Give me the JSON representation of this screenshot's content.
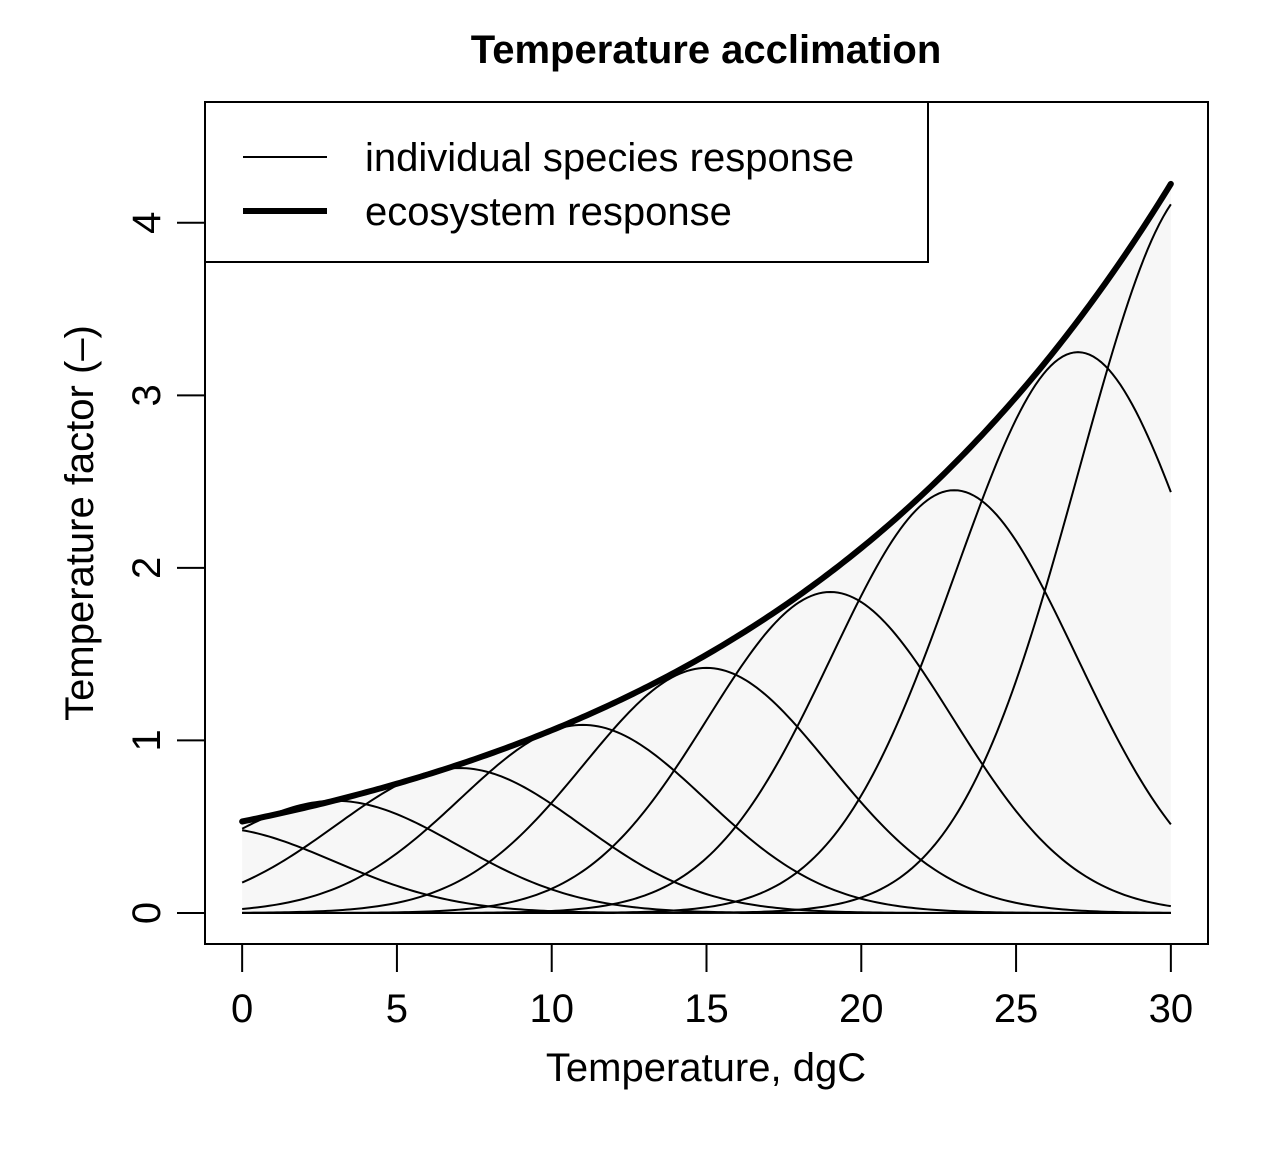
{
  "chart_data": {
    "type": "line",
    "title": "Temperature acclimation",
    "xlabel": "Temperature, dgC",
    "ylabel": "Temperature factor (–)",
    "xlim": [
      -1.2,
      31.2
    ],
    "ylim": [
      -0.18,
      4.7
    ],
    "x_ticks": [
      0,
      5,
      10,
      15,
      20,
      25,
      30
    ],
    "y_ticks": [
      0,
      1,
      2,
      3,
      4
    ],
    "grid": false,
    "legend_position": "top-left",
    "legend": [
      {
        "label": "individual species response",
        "style": "thin"
      },
      {
        "label": "ecosystem response",
        "style": "thick"
      }
    ],
    "fill_color": "#f7f7f7",
    "line_color": "#000000",
    "ecosystem_response": {
      "name": "ecosystem response",
      "function": "0.53 * exp(0.0692 * T)",
      "x": [
        0,
        5,
        10,
        15,
        20,
        25,
        30
      ],
      "y": [
        0.53,
        0.75,
        1.06,
        1.5,
        2.12,
        3.0,
        4.22
      ]
    },
    "individual_species_response": {
      "name": "individual species response",
      "function": "peak * exp(-((T - optimum)/width)^2)",
      "width": 5.6,
      "curves": [
        {
          "optimum": -1,
          "peak": 0.495
        },
        {
          "optimum": 3,
          "peak": 0.65
        },
        {
          "optimum": 7,
          "peak": 0.84
        },
        {
          "optimum": 11,
          "peak": 1.09
        },
        {
          "optimum": 15,
          "peak": 1.42
        },
        {
          "optimum": 19,
          "peak": 1.86
        },
        {
          "optimum": 23,
          "peak": 2.45
        },
        {
          "optimum": 27,
          "peak": 3.25
        },
        {
          "optimum": 31,
          "peak": 4.24
        }
      ]
    }
  }
}
